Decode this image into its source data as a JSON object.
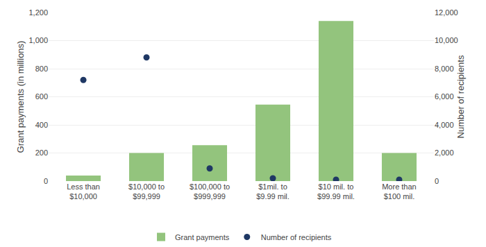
{
  "chart_data": {
    "type": "bar",
    "categories": [
      "Less than\n$10,000",
      "$10,000 to\n$99,999",
      "$100,000 to\n$999,999",
      "$1mil. to\n$9.99 mil.",
      "$10 mil. to\n$99.99 mil.",
      "More than\n$100 mil."
    ],
    "series": [
      {
        "name": "Grant payments",
        "type": "bar",
        "color": "#93c47d",
        "values": [
          40,
          200,
          255,
          545,
          1140,
          200
        ]
      },
      {
        "name": "Number of recipients",
        "type": "scatter",
        "marker": "circle",
        "color": "#1f3864",
        "axis": "y2",
        "values": [
          7200,
          8800,
          900,
          200,
          100,
          100
        ]
      }
    ],
    "ylabel": "Grant payments (in millions)",
    "y2label": "Number of recipients",
    "ylim": [
      0,
      1200
    ],
    "yticks": [
      0,
      200,
      400,
      600,
      800,
      {
        "value": 1000,
        "label": "1,000"
      },
      {
        "value": 1200,
        "label": "1,200"
      }
    ],
    "y2lim": [
      0,
      12000
    ],
    "y2ticks": [
      0,
      {
        "value": 2000,
        "label": "2,000"
      },
      {
        "value": 4000,
        "label": "4,000"
      },
      {
        "value": 6000,
        "label": "6,000"
      },
      {
        "value": 8000,
        "label": "8,000"
      },
      {
        "value": 10000,
        "label": "10,000"
      },
      {
        "value": 12000,
        "label": "12,000"
      }
    ],
    "grid": true,
    "legend": "bottom"
  }
}
